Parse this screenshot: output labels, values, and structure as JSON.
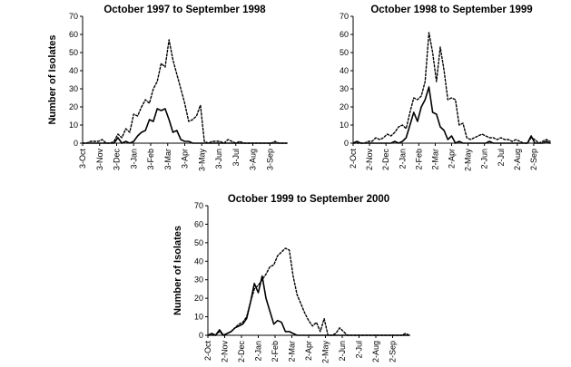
{
  "chart_data": [
    {
      "type": "line",
      "title": "October 1997 to September 1998",
      "xlabel": "",
      "ylabel": "Number of Isolates",
      "ylim": [
        0,
        70
      ],
      "yticks": [
        0,
        10,
        20,
        30,
        40,
        50,
        60,
        70
      ],
      "x_ticks": [
        "3-Oct",
        "3-Nov",
        "3-Dec",
        "3-Jan",
        "3-Feb",
        "3-Mar",
        "3-Apr",
        "3-May",
        "3-Jun",
        "3-Jul",
        "3-Aug",
        "3-Sep"
      ],
      "x_range_weeks": [
        0,
        52
      ],
      "grid": false,
      "series": [
        {
          "name": "solid",
          "style": "solid",
          "x": [
            0,
            1,
            2,
            3,
            4,
            5,
            6,
            7,
            8,
            9,
            10,
            11,
            12,
            13,
            14,
            15,
            16,
            17,
            18,
            19,
            20,
            21,
            22,
            23,
            24,
            25,
            26,
            27,
            28,
            29,
            30,
            31,
            32,
            33,
            34,
            35,
            36,
            37,
            38,
            39,
            40,
            41,
            42,
            43,
            44,
            45,
            46,
            47,
            48,
            49,
            50,
            51,
            52
          ],
          "values": [
            0,
            0,
            0,
            0,
            0,
            0,
            0,
            0,
            0,
            3,
            0,
            1,
            0,
            1,
            4,
            6,
            7,
            13,
            12,
            19,
            18,
            19,
            13,
            6,
            7,
            2,
            1,
            1,
            0,
            0,
            0,
            0,
            0,
            0,
            0,
            0,
            0,
            0,
            0,
            0,
            0,
            0,
            0,
            0,
            0,
            0,
            0,
            0,
            0,
            0,
            0,
            0,
            0
          ]
        },
        {
          "name": "dotted",
          "style": "dotted",
          "x": [
            0,
            1,
            2,
            3,
            4,
            5,
            6,
            7,
            8,
            9,
            10,
            11,
            12,
            13,
            14,
            15,
            16,
            17,
            18,
            19,
            20,
            21,
            22,
            23,
            24,
            25,
            26,
            27,
            28,
            29,
            30,
            31,
            32,
            33,
            34,
            35,
            36,
            37,
            38,
            39,
            40,
            41,
            42,
            43,
            44,
            45,
            46,
            47,
            48,
            49,
            50,
            51,
            52
          ],
          "values": [
            0,
            0,
            1,
            1,
            1,
            2,
            0,
            0,
            1,
            5,
            3,
            8,
            6,
            16,
            15,
            20,
            24,
            22,
            30,
            34,
            44,
            42,
            57,
            46,
            38,
            30,
            22,
            12,
            13,
            15,
            21,
            1,
            0,
            1,
            1,
            1,
            0,
            2,
            1,
            0,
            1,
            0,
            0,
            0,
            0,
            0,
            0,
            0,
            0,
            1,
            0,
            0,
            0
          ]
        }
      ]
    },
    {
      "type": "line",
      "title": "October 1998 to September 1999",
      "xlabel": "",
      "ylabel": "",
      "ylim": [
        0,
        70
      ],
      "yticks": [
        0,
        10,
        20,
        30,
        40,
        50,
        60,
        70
      ],
      "x_ticks": [
        "2-Oct",
        "2-Nov",
        "2-Dec",
        "2-Jan",
        "2-Feb",
        "2-Mar",
        "2-Apr",
        "2-May",
        "2-Jun",
        "2-Jul",
        "2-Aug",
        "2-Sep"
      ],
      "x_range_weeks": [
        0,
        52
      ],
      "grid": false,
      "series": [
        {
          "name": "solid",
          "style": "solid",
          "x": [
            0,
            1,
            2,
            3,
            4,
            5,
            6,
            7,
            8,
            9,
            10,
            11,
            12,
            13,
            14,
            15,
            16,
            17,
            18,
            19,
            20,
            21,
            22,
            23,
            24,
            25,
            26,
            27,
            28,
            29,
            30,
            31,
            32,
            33,
            34,
            35,
            36,
            37,
            38,
            39,
            40,
            41,
            42,
            43,
            44,
            45,
            46,
            47,
            48,
            49,
            50,
            51,
            52
          ],
          "values": [
            0,
            1,
            0,
            0,
            0,
            0,
            0,
            0,
            0,
            0,
            0,
            1,
            0,
            1,
            3,
            10,
            17,
            12,
            20,
            24,
            31,
            17,
            16,
            9,
            7,
            2,
            4,
            0,
            1,
            0,
            0,
            0,
            0,
            0,
            0,
            0,
            1,
            0,
            0,
            0,
            0,
            0,
            0,
            0,
            0,
            0,
            0,
            4,
            0,
            0,
            0,
            1,
            0
          ]
        },
        {
          "name": "dotted",
          "style": "dotted",
          "x": [
            0,
            1,
            2,
            3,
            4,
            5,
            6,
            7,
            8,
            9,
            10,
            11,
            12,
            13,
            14,
            15,
            16,
            17,
            18,
            19,
            20,
            21,
            22,
            23,
            24,
            25,
            26,
            27,
            28,
            29,
            30,
            31,
            32,
            33,
            34,
            35,
            36,
            37,
            38,
            39,
            40,
            41,
            42,
            43,
            44,
            45,
            46,
            47,
            48,
            49,
            50,
            51,
            52
          ],
          "values": [
            0,
            0,
            0,
            0,
            1,
            1,
            3,
            2,
            3,
            5,
            4,
            6,
            9,
            10,
            8,
            17,
            25,
            24,
            26,
            34,
            61,
            50,
            34,
            53,
            40,
            24,
            25,
            24,
            10,
            11,
            3,
            2,
            3,
            4,
            5,
            4,
            3,
            3,
            2,
            3,
            2,
            2,
            1,
            2,
            1,
            0,
            0,
            3,
            2,
            0,
            1,
            2,
            1
          ]
        }
      ]
    },
    {
      "type": "line",
      "title": "October 1999 to September 2000",
      "xlabel": "",
      "ylabel": "Number of Isolates",
      "ylim": [
        0,
        70
      ],
      "yticks": [
        0,
        10,
        20,
        30,
        40,
        50,
        60,
        70
      ],
      "x_ticks": [
        "2-Oct",
        "2-Nov",
        "2-Dec",
        "2-Jan",
        "2-Feb",
        "2-Mar",
        "2-Apr",
        "2-May",
        "2-Jun",
        "2-Jul",
        "2-Aug",
        "2-Sep"
      ],
      "x_range_weeks": [
        0,
        52
      ],
      "grid": false,
      "series": [
        {
          "name": "solid",
          "style": "solid",
          "x": [
            0,
            1,
            2,
            3,
            4,
            5,
            6,
            7,
            8,
            9,
            10,
            11,
            12,
            13,
            14,
            15,
            16,
            17,
            18,
            19,
            20,
            21,
            22,
            23,
            24,
            25,
            26,
            27,
            28,
            29,
            30,
            31,
            32,
            33,
            34,
            35,
            36,
            37,
            38,
            39,
            40,
            41,
            42,
            43,
            44,
            45,
            46,
            47,
            48,
            49,
            50,
            51,
            52
          ],
          "values": [
            0,
            1,
            0,
            3,
            0,
            1,
            2,
            4,
            5,
            6,
            9,
            18,
            28,
            23,
            32,
            20,
            13,
            6,
            8,
            7,
            2,
            2,
            1,
            0,
            0,
            0,
            0,
            0,
            0,
            0,
            0,
            0,
            0,
            0,
            0,
            0,
            0,
            0,
            0,
            0,
            0,
            0,
            0,
            0,
            0,
            0,
            0,
            0,
            0,
            0,
            0,
            0,
            0
          ]
        },
        {
          "name": "dotted",
          "style": "dotted",
          "x": [
            0,
            1,
            2,
            3,
            4,
            5,
            6,
            7,
            8,
            9,
            10,
            11,
            12,
            13,
            14,
            15,
            16,
            17,
            18,
            19,
            20,
            21,
            22,
            23,
            24,
            25,
            26,
            27,
            28,
            29,
            30,
            31,
            32,
            33,
            34,
            35,
            36,
            37,
            38,
            39,
            40,
            41,
            42,
            43,
            44,
            45,
            46,
            47,
            48,
            49,
            50,
            51,
            52
          ],
          "values": [
            0,
            0,
            0,
            2,
            0,
            1,
            2,
            4,
            6,
            7,
            10,
            18,
            25,
            27,
            30,
            33,
            37,
            38,
            43,
            45,
            47,
            46,
            32,
            22,
            17,
            12,
            8,
            5,
            7,
            2,
            9,
            0,
            0,
            1,
            4,
            2,
            0,
            0,
            0,
            0,
            0,
            0,
            0,
            0,
            0,
            0,
            0,
            0,
            0,
            0,
            0,
            1,
            0
          ]
        }
      ]
    }
  ]
}
